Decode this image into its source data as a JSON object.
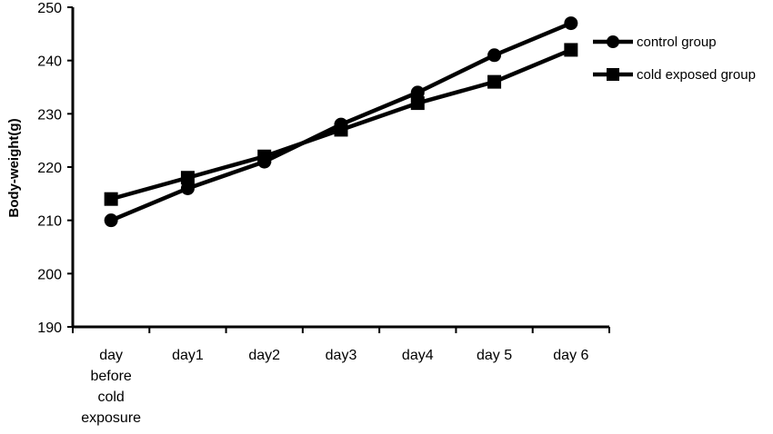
{
  "chart_data": {
    "type": "line",
    "title": "",
    "xlabel": "",
    "ylabel": "Body-weight(g)",
    "ylim": [
      190,
      250
    ],
    "yticks": [
      190,
      200,
      210,
      220,
      230,
      240,
      250
    ],
    "grid": false,
    "legend_position": "top-right",
    "categories": [
      [
        "day",
        "before",
        "cold",
        "exposure"
      ],
      [
        "day1"
      ],
      [
        "day2"
      ],
      [
        "day3"
      ],
      [
        "day4"
      ],
      [
        "day 5"
      ],
      [
        "day 6"
      ]
    ],
    "series": [
      {
        "name": "control group",
        "marker": "circle",
        "color": "#000000",
        "values": [
          210,
          216,
          221,
          228,
          234,
          241,
          247
        ]
      },
      {
        "name": "cold exposed group",
        "marker": "square",
        "color": "#000000",
        "values": [
          214,
          218,
          222,
          227,
          232,
          236,
          242
        ]
      }
    ]
  }
}
